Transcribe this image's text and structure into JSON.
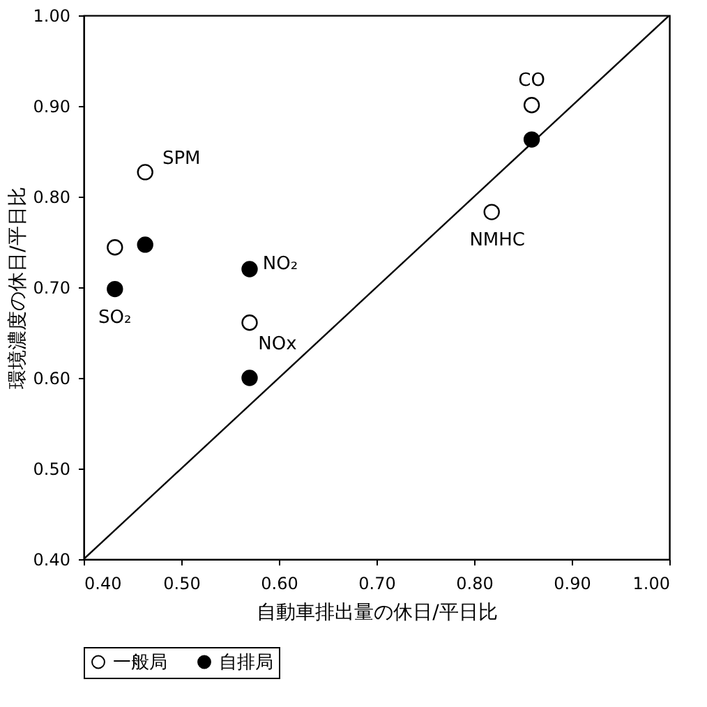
{
  "chart_data": {
    "type": "scatter",
    "xlabel": "自動車排出量の休日/平日比",
    "ylabel": "環境濃度の休日/平日比",
    "xlim": [
      0.4,
      1.0
    ],
    "ylim": [
      0.4,
      1.0
    ],
    "xticks": [
      {
        "value": 0.4,
        "label": "0.40"
      },
      {
        "value": 0.5,
        "label": "0.50"
      },
      {
        "value": 0.6,
        "label": "0.60"
      },
      {
        "value": 0.7,
        "label": "0.70"
      },
      {
        "value": 0.8,
        "label": "0.80"
      },
      {
        "value": 0.9,
        "label": "0.90"
      },
      {
        "value": 1.0,
        "label": "1.00"
      }
    ],
    "yticks": [
      {
        "value": 0.4,
        "label": "0.40"
      },
      {
        "value": 0.5,
        "label": "0.50"
      },
      {
        "value": 0.6,
        "label": "0.60"
      },
      {
        "value": 0.7,
        "label": "0.70"
      },
      {
        "value": 0.8,
        "label": "0.80"
      },
      {
        "value": 0.9,
        "label": "0.90"
      },
      {
        "value": 1.0,
        "label": "1.00"
      }
    ],
    "grid": false,
    "legend": "bottom",
    "marker": "circle",
    "series": [
      {
        "name": "一般局",
        "color": "#ffffff",
        "x": [
          0.432,
          0.463,
          0.57,
          0.818,
          0.859
        ],
        "values": [
          0.744,
          0.827,
          0.661,
          0.783,
          0.901
        ]
      },
      {
        "name": "自排局",
        "color": "#000000",
        "x": [
          0.432,
          0.463,
          0.57,
          0.57,
          0.859
        ],
        "values": [
          0.698,
          0.747,
          0.72,
          0.6,
          0.863
        ]
      },
      {
        "type": "line",
        "color": "#000000",
        "marker": "none",
        "x": [
          0.4,
          1.0
        ],
        "values": [
          0.4,
          1.0
        ]
      }
    ],
    "annotations": [
      {
        "text": "SPM",
        "x": 0.463,
        "y": 0.827
      },
      {
        "text": "SO₂",
        "x": 0.432,
        "y": 0.698
      },
      {
        "text": "NO₂",
        "x": 0.57,
        "y": 0.72
      },
      {
        "text": "NOx",
        "x": 0.57,
        "y": 0.661
      },
      {
        "text": "CO",
        "x": 0.859,
        "y": 0.901
      },
      {
        "text": "NMHC",
        "x": 0.818,
        "y": 0.783
      }
    ]
  }
}
